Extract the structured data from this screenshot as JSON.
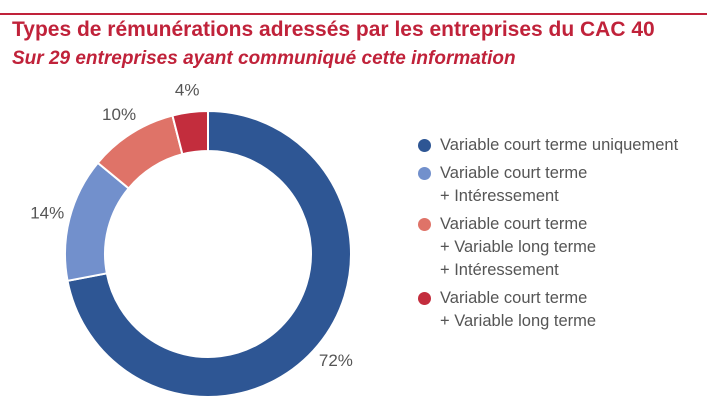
{
  "header": {
    "title": "Types de rémunérations adressés par les entreprises du CAC 40",
    "subtitle": "Sur 29 entreprises ayant communiqué cette information"
  },
  "colors": {
    "accent": "#c0223a",
    "series": [
      "#2e5694",
      "#7290cc",
      "#df7368",
      "#c32d3d"
    ]
  },
  "chart_data": {
    "type": "pie",
    "donut": true,
    "categories": [
      "Variable court terme uniquement",
      "Variable court terme + Intéressement",
      "Variable court terme + Variable long terme + Intéressement",
      "Variable court terme + Variable long terme"
    ],
    "values": [
      72,
      14,
      10,
      4
    ],
    "data_labels": [
      "72%",
      "14%",
      "10%",
      "4%"
    ],
    "legend_position": "right",
    "title": "Types de rémunérations adressés par les entreprises du CAC 40",
    "subtitle": "Sur 29 entreprises ayant communiqué cette information"
  },
  "legend": {
    "items": [
      {
        "lines": [
          "Variable court terme uniquement"
        ]
      },
      {
        "lines": [
          "Variable court terme",
          "+ Intéressement"
        ]
      },
      {
        "lines": [
          "Variable court terme",
          "+ Variable long terme",
          "+ Intéressement"
        ]
      },
      {
        "lines": [
          "Variable court terme",
          "+ Variable long terme"
        ]
      }
    ]
  }
}
